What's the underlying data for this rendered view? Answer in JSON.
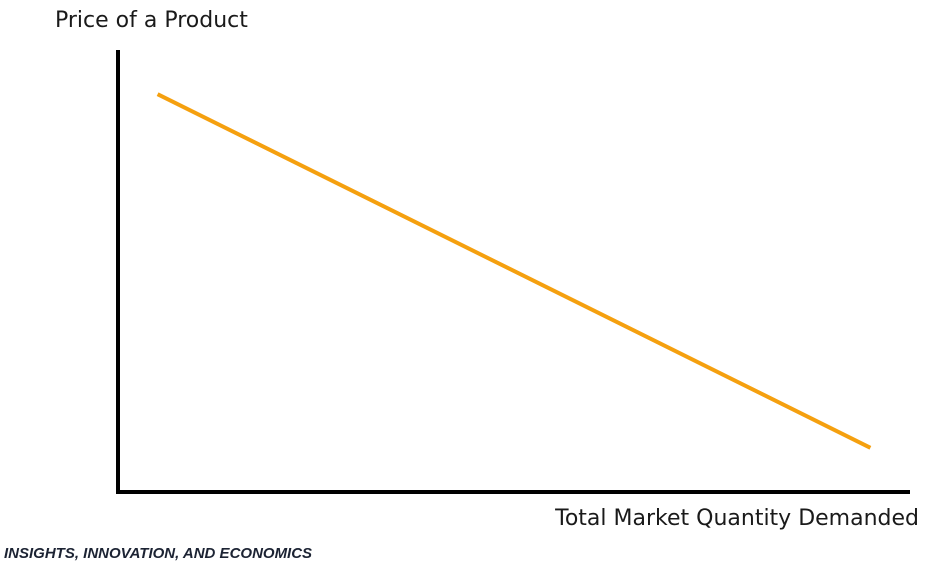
{
  "chart_data": {
    "type": "line",
    "title": "",
    "xlabel": "Total Market Quantity Demanded",
    "ylabel": "Price of a Product",
    "grid": false,
    "legend": "none",
    "series": [
      {
        "color": "#f5a00f",
        "x": [
          0.05,
          0.95
        ],
        "y": [
          0.9,
          0.1
        ]
      }
    ],
    "xlim": [
      0,
      1
    ],
    "ylim": [
      0,
      1
    ]
  },
  "footer": {
    "text": "INSIGHTS, INNOVATION, AND ECONOMICS"
  }
}
